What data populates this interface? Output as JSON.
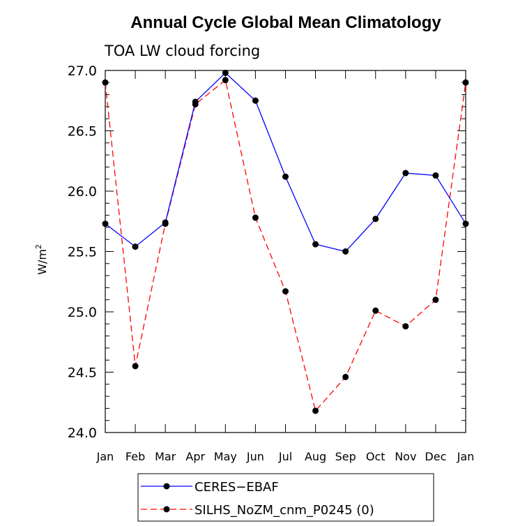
{
  "chart_data": {
    "type": "line",
    "title": "Annual Cycle Global Mean Climatology",
    "subtitle": "TOA LW cloud forcing",
    "ylabel": "W/m",
    "ylabel_sup": "2",
    "xlabel": "",
    "categories": [
      "Jan",
      "Feb",
      "Mar",
      "Apr",
      "May",
      "Jun",
      "Jul",
      "Aug",
      "Sep",
      "Oct",
      "Nov",
      "Dec",
      "Jan"
    ],
    "ylim": [
      24.0,
      27.0
    ],
    "yticks": [
      24.0,
      24.5,
      25.0,
      25.5,
      26.0,
      26.5,
      27.0
    ],
    "ytick_labels": [
      "24.0",
      "24.5",
      "25.0",
      "25.5",
      "26.0",
      "26.5",
      "27.0"
    ],
    "minor_step": 0.1,
    "legend_position": "bottom-center",
    "series": [
      {
        "name": "CERES−EBAF",
        "color": "#0000ff",
        "style": "solid",
        "values": [
          25.73,
          25.54,
          25.74,
          26.74,
          26.98,
          26.75,
          26.12,
          25.56,
          25.5,
          25.77,
          26.15,
          26.13,
          25.73
        ]
      },
      {
        "name": "SILHS_NoZM_cnm_P0245 (0)",
        "color": "#ff0000",
        "style": "dashed",
        "values": [
          26.9,
          24.55,
          25.73,
          26.72,
          26.92,
          25.78,
          25.17,
          24.18,
          24.46,
          25.01,
          24.88,
          25.1,
          26.9
        ]
      }
    ]
  }
}
